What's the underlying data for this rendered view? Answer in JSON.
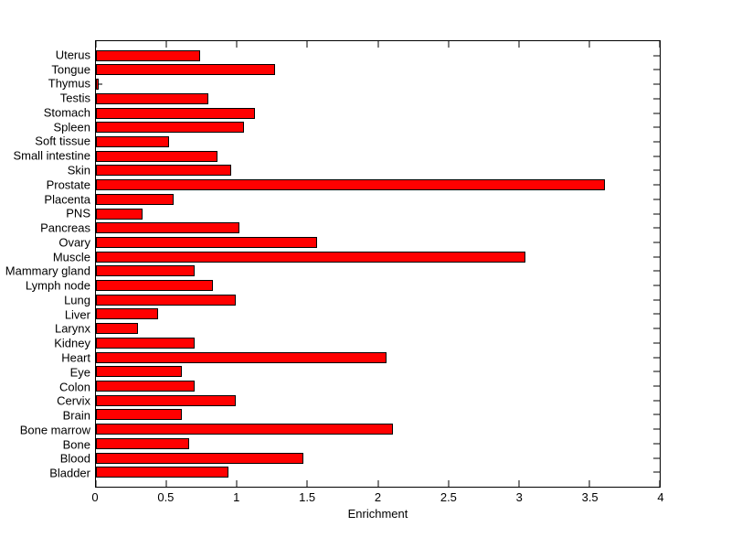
{
  "figure": {
    "background_color": "#ffffff",
    "text_color": "#000000"
  },
  "chart_data": {
    "type": "bar",
    "orientation": "horizontal",
    "title": "",
    "xlabel": "Enrichment",
    "ylabel": "",
    "xlim": [
      0,
      4
    ],
    "xtick_labels": [
      "0",
      "0.5",
      "1",
      "1.5",
      "2",
      "2.5",
      "3",
      "3.5",
      "4"
    ],
    "grid": false,
    "legend": false,
    "bar_color": "#ff0000",
    "bar_edge_color": "#000000",
    "categories": [
      "Uterus",
      "Tongue",
      "Thymus",
      "Testis",
      "Stomach",
      "Spleen",
      "Soft tissue",
      "Small intestine",
      "Skin",
      "Prostate",
      "Placenta",
      "PNS",
      "Pancreas",
      "Ovary",
      "Muscle",
      "Mammary gland",
      "Lymph node",
      "Lung",
      "Liver",
      "Larynx",
      "Kidney",
      "Heart",
      "Eye",
      "Colon",
      "Cervix",
      "Brain",
      "Bone marrow",
      "Bone",
      "Blood",
      "Bladder"
    ],
    "values": [
      0.74,
      1.27,
      0.02,
      0.8,
      1.13,
      1.05,
      0.52,
      0.86,
      0.96,
      3.61,
      0.55,
      0.33,
      1.02,
      1.57,
      3.05,
      0.7,
      0.83,
      0.99,
      0.44,
      0.3,
      0.7,
      2.06,
      0.61,
      0.7,
      0.99,
      0.61,
      2.11,
      0.66,
      1.47,
      0.94
    ]
  }
}
